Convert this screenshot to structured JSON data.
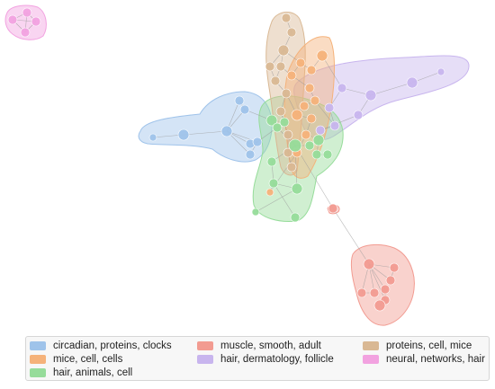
{
  "legend": {
    "items": [
      {
        "label": "circadian, proteins, clocks",
        "color": "#9fc3ea"
      },
      {
        "label": "muscle, smooth, adult",
        "color": "#f29b91"
      },
      {
        "label": "proteins, cell, mice",
        "color": "#d9b894"
      },
      {
        "label": "mice, cell, cells",
        "color": "#f5b27a"
      },
      {
        "label": "hair, dermatology, follicle",
        "color": "#c8b5ee"
      },
      {
        "label": "neural, networks, hair",
        "color": "#f2a2e0"
      },
      {
        "label": "hair, animals, cell",
        "color": "#96dc9a"
      }
    ]
  },
  "clusters": [
    {
      "name": "circadian",
      "color": "#9fc3ea"
    },
    {
      "name": "muscle",
      "color": "#f29b91"
    },
    {
      "name": "proteins",
      "color": "#d9b894"
    },
    {
      "name": "mice",
      "color": "#f5b27a"
    },
    {
      "name": "hair-dermatology",
      "color": "#c8b5ee"
    },
    {
      "name": "neural",
      "color": "#f2a2e0"
    },
    {
      "name": "hair-animals",
      "color": "#96dc9a"
    }
  ]
}
